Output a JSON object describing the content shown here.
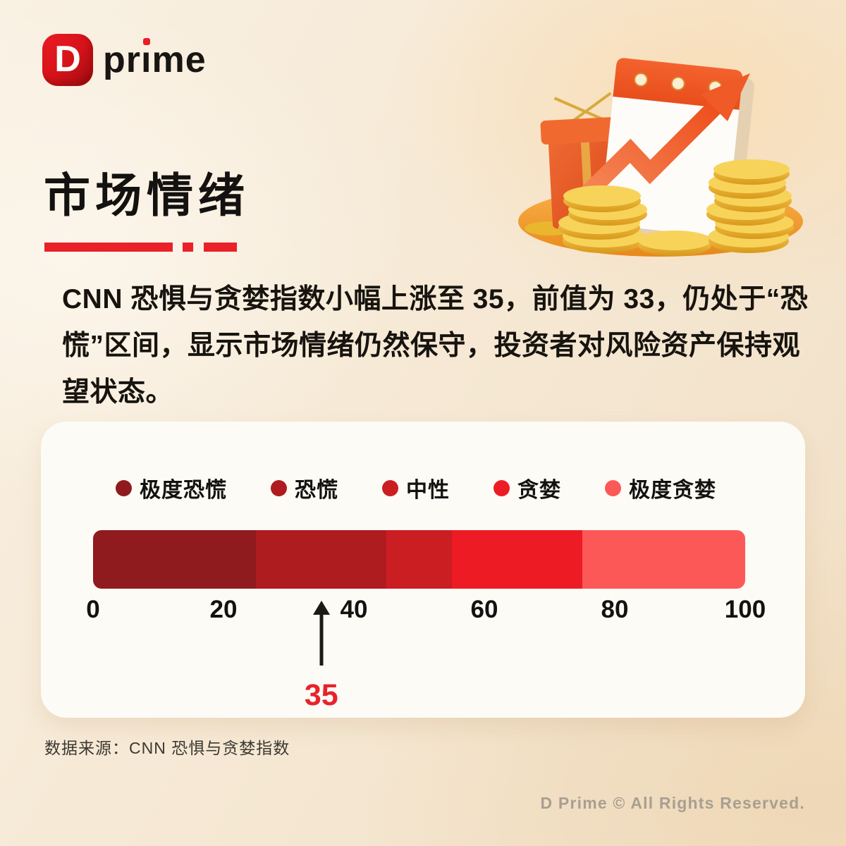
{
  "brand": {
    "mark_letter": "D",
    "word_pre": "pr",
    "word_dotless_i": "ı",
    "word_post": "me"
  },
  "header": {
    "title": "市场情绪"
  },
  "summary": {
    "text": "CNN 恐惧与贪婪指数小幅上涨至 35，前值为 33，仍处于“恐慌”区间，显示市场情绪仍然保守，投资者对风险资产保持观望状态。"
  },
  "chart_data": {
    "type": "bar",
    "title": "CNN 恐惧与贪婪指数",
    "scale": {
      "min": 0,
      "max": 100,
      "ticks": [
        0,
        20,
        40,
        60,
        80,
        100
      ]
    },
    "segments": [
      {
        "label": "极度恐慌",
        "from": 0,
        "to": 25,
        "color": "#8f1b1e"
      },
      {
        "label": "恐慌",
        "from": 25,
        "to": 45,
        "color": "#af1c20"
      },
      {
        "label": "中性",
        "from": 45,
        "to": 55,
        "color": "#cb1e23"
      },
      {
        "label": "贪婪",
        "from": 55,
        "to": 75,
        "color": "#ed1c24"
      },
      {
        "label": "极度贪婪",
        "from": 75,
        "to": 100,
        "color": "#fc5858"
      }
    ],
    "pointer": {
      "value": 35,
      "label": "35"
    },
    "previous_value": 33,
    "legend_position": "top",
    "pointer_color": "#e8232a"
  },
  "footer": {
    "source": "数据来源：CNN 恐惧与贪婪指数",
    "copyright": "D Prime © All Rights Reserved."
  },
  "illustration": {
    "description": "calendar-with-rising-arrow-gift-box-and-gold-coins"
  }
}
